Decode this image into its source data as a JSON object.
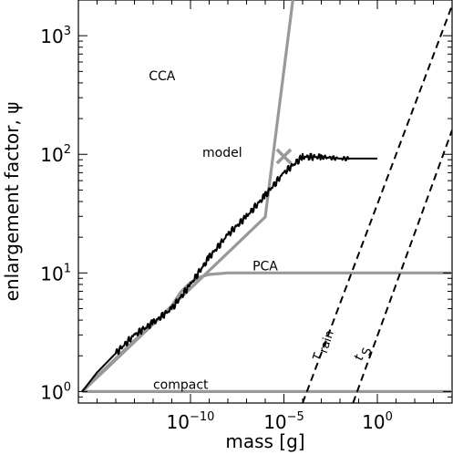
{
  "chart_data": {
    "type": "line",
    "xlabel": "mass [g]",
    "ylabel": "enlargement factor, ψ",
    "x_scale": "log",
    "y_scale": "log",
    "xlim": [
      1e-16,
      10000.0
    ],
    "ylim": [
      0.8,
      2000
    ],
    "x_ticks": [
      {
        "value": 1e-10,
        "base": "10",
        "exp": "−10"
      },
      {
        "value": 1e-05,
        "base": "10",
        "exp": "−5"
      },
      {
        "value": 1,
        "base": "10",
        "exp": "0"
      }
    ],
    "y_ticks": [
      {
        "value": 1,
        "base": "10",
        "exp": "0"
      },
      {
        "value": 10,
        "base": "10",
        "exp": "1"
      },
      {
        "value": 100,
        "base": "10",
        "exp": "2"
      },
      {
        "value": 1000,
        "base": "10",
        "exp": "3"
      }
    ],
    "series": [
      {
        "name": "CCA",
        "style": "solid",
        "color": "#999999",
        "x": [
          1.6e-16,
          1e-14,
          1e-12,
          1e-10,
          1e-08,
          1e-06,
          3e-05
        ],
        "y": [
          1,
          1.85,
          3.7,
          7.4,
          14.8,
          29.6,
          2000
        ]
      },
      {
        "name": "PCA",
        "style": "solid",
        "color": "#999999",
        "x": [
          1.6e-16,
          1e-15,
          1e-14,
          1e-13,
          1e-12,
          1e-11,
          3e-11,
          1e-10,
          3e-10,
          1e-09,
          1e-08,
          1e-06,
          0.0001,
          1,
          10000.0
        ],
        "y": [
          1,
          1.35,
          1.9,
          2.7,
          3.7,
          5.3,
          6.9,
          8.3,
          9.2,
          9.7,
          10,
          10,
          10,
          10,
          10
        ]
      },
      {
        "name": "compact",
        "style": "solid",
        "color": "#999999",
        "x": [
          1.6e-16,
          10000.0
        ],
        "y": [
          1,
          1
        ]
      },
      {
        "name": "model",
        "style": "solid",
        "color": "#000000",
        "x": [
          1.6e-16,
          1e-15,
          1e-14,
          1e-13,
          1e-12,
          1e-11,
          1e-10,
          1e-09,
          1e-08,
          1e-07,
          1e-06,
          1e-05,
          0.0001,
          0.001,
          0.01,
          0.1,
          1
        ],
        "y": [
          1,
          1.45,
          2.1,
          3.0,
          3.8,
          5.0,
          8.0,
          13.5,
          21,
          30,
          45,
          70,
          95,
          95,
          92,
          92,
          92
        ]
      },
      {
        "name": "τ_rain",
        "style": "dashed",
        "color": "#000000",
        "x": [
          0.0001,
          10000.0
        ],
        "y": [
          0.8,
          1800
        ]
      },
      {
        "name": "t_S",
        "style": "dashed",
        "color": "#000000",
        "x": [
          0.05,
          10000.0
        ],
        "y": [
          0.8,
          160
        ]
      }
    ],
    "annotations": [
      {
        "text": "CCA",
        "x": 3e-12,
        "y": 420
      },
      {
        "text": "PCA",
        "x": 1e-06,
        "y": 10.5
      },
      {
        "text": "compact",
        "x": 3e-11,
        "y": 1.05
      },
      {
        "text": "model",
        "x": 5e-09,
        "y": 95
      },
      {
        "text": "τ",
        "sub": "rain",
        "x": 0.0007,
        "y": 1.8
      },
      {
        "text": "t",
        "sub": "S",
        "x": 0.15,
        "y": 1.8
      }
    ],
    "markers": [
      {
        "symbol": "×",
        "x": 1e-05,
        "y": 95,
        "color": "#999999"
      }
    ],
    "grid": false,
    "legend": "none"
  }
}
